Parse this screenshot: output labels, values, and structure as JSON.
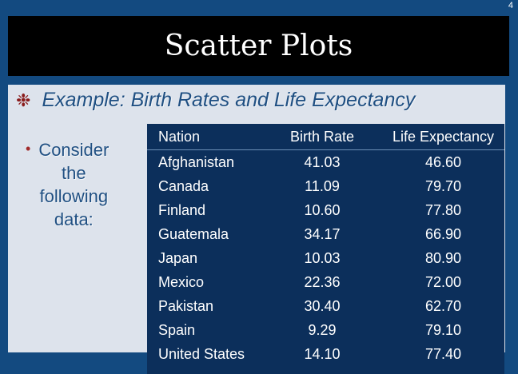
{
  "slide_number": "4",
  "title": "Scatter Plots",
  "subtitle": {
    "icon": "asterisk-icon",
    "text": "Example:  Birth Rates and Life Expectancy"
  },
  "bullet": {
    "lines": [
      "Consider",
      "the",
      "following",
      "data:"
    ]
  },
  "table": {
    "headers": [
      "Nation",
      "Birth Rate",
      "Life Expectancy"
    ],
    "rows": [
      [
        "Afghanistan",
        "41.03",
        "46.60"
      ],
      [
        "Canada",
        "11.09",
        "79.70"
      ],
      [
        "Finland",
        "10.60",
        "77.80"
      ],
      [
        "Guatemala",
        "34.17",
        "66.90"
      ],
      [
        "Japan",
        "10.03",
        "80.90"
      ],
      [
        "Mexico",
        "22.36",
        "72.00"
      ],
      [
        "Pakistan",
        "30.40",
        "62.70"
      ],
      [
        "Spain",
        "9.29",
        "79.10"
      ],
      [
        "United States",
        "14.10",
        "77.40"
      ]
    ]
  },
  "colors": {
    "background": "#134a80",
    "title_bar": "#000000",
    "content_box": "#dde3ec",
    "table_panel": "#0c2f5b",
    "accent_text": "#1f4f82",
    "bullet_accent": "#a12a2a"
  }
}
